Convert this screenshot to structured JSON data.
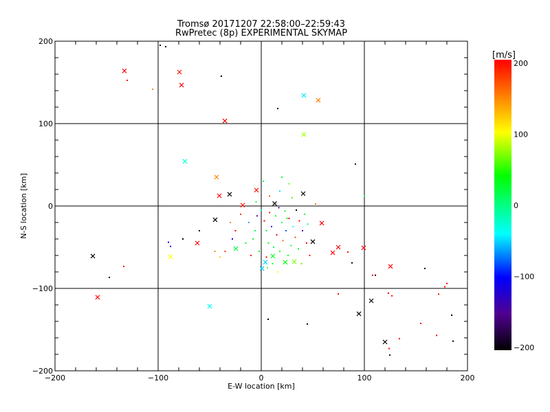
{
  "chart_data": {
    "type": "scatter",
    "title": "Tromsø 20171207 22:58:00–22:59:43",
    "subtitle": "RwPretec (8p) EXPERIMENTAL SKYMAP",
    "xlabel": "E-W location [km]",
    "ylabel": "N-S location [km]",
    "xlim": [
      -200,
      200
    ],
    "ylim": [
      -200,
      200
    ],
    "xticks": [
      -200,
      -100,
      0,
      100,
      200
    ],
    "yticks": [
      -200,
      -100,
      0,
      100,
      200
    ],
    "grid": true,
    "colorbar": {
      "label": "[m/s]",
      "range": [
        -200,
        200
      ],
      "ticks": [
        200,
        100,
        0,
        -100,
        -200
      ]
    },
    "series": [
      {
        "name": "crosses",
        "marker": "x",
        "points": [
          [
            -132.7,
            164,
            200
          ],
          [
            -79.3,
            162.5,
            195
          ],
          [
            -77.3,
            146.7,
            200
          ],
          [
            -35.3,
            103.3,
            200
          ],
          [
            41.3,
            134.2,
            -45
          ],
          [
            55.3,
            128.3,
            150
          ],
          [
            41.3,
            86.7,
            80
          ],
          [
            -74,
            54.2,
            -30
          ],
          [
            -43.3,
            35,
            150
          ],
          [
            -30.7,
            14.2,
            -200
          ],
          [
            -40.7,
            12.5,
            200
          ],
          [
            -4.7,
            19.2,
            190
          ],
          [
            40.7,
            15,
            -200
          ],
          [
            -44.7,
            -16.7,
            -200
          ],
          [
            -62,
            -45,
            200
          ],
          [
            -88,
            -61.7,
            100
          ],
          [
            -163.3,
            -60.8,
            -200
          ],
          [
            -158.7,
            -110.8,
            200
          ],
          [
            -50,
            -121.7,
            -40
          ],
          [
            50,
            -43.3,
            -200
          ],
          [
            58.7,
            -20.8,
            200
          ],
          [
            69.3,
            -56.7,
            200
          ],
          [
            74.7,
            -50,
            200
          ],
          [
            99.3,
            -50.8,
            200
          ],
          [
            125.3,
            -73.3,
            200
          ],
          [
            106.7,
            -115,
            -200
          ],
          [
            94.7,
            -130.8,
            -200
          ],
          [
            120,
            -165,
            -200
          ],
          [
            4,
            -68.3,
            -50
          ],
          [
            0.7,
            -75.8,
            -55
          ],
          [
            -24.7,
            -51.7,
            20
          ],
          [
            32,
            -67.5,
            70
          ],
          [
            11.3,
            -60.8,
            30
          ],
          [
            23.3,
            -68.3,
            40
          ],
          [
            -18,
            1,
            190
          ],
          [
            13,
            3,
            -200
          ]
        ]
      },
      {
        "name": "dots",
        "marker": "dot",
        "points": [
          [
            -98,
            195,
            -200
          ],
          [
            -92.7,
            193.3,
            -200
          ],
          [
            -38.7,
            157.5,
            -200
          ],
          [
            16,
            118.3,
            -200
          ],
          [
            -130,
            152.5,
            200
          ],
          [
            -105.3,
            141.7,
            150
          ],
          [
            91.3,
            50.8,
            -180
          ],
          [
            -147.3,
            -86.7,
            -200
          ],
          [
            -133.3,
            -73.3,
            200
          ],
          [
            44.7,
            -143.3,
            -200
          ],
          [
            6.7,
            -137.5,
            -200
          ],
          [
            158.7,
            -75.8,
            -200
          ],
          [
            180,
            -94,
            200
          ],
          [
            178,
            -98,
            200
          ],
          [
            172,
            -107,
            200
          ],
          [
            170,
            -157,
            200
          ],
          [
            154.7,
            -142.5,
            200
          ],
          [
            184.7,
            -132.5,
            -200
          ],
          [
            186,
            -164,
            -200
          ],
          [
            134,
            -161,
            200
          ],
          [
            124,
            -173,
            200
          ],
          [
            124.7,
            -181,
            -200
          ],
          [
            74.7,
            -106.7,
            200
          ],
          [
            108,
            -84,
            200
          ],
          [
            110.7,
            -84,
            -200
          ],
          [
            123.3,
            -105.8,
            200
          ],
          [
            126.7,
            -109,
            200
          ],
          [
            88,
            -69,
            -200
          ],
          [
            100,
            12,
            10
          ],
          [
            84,
            -56,
            200
          ],
          [
            52.7,
            2.5,
            150
          ],
          [
            -90,
            -44,
            -100
          ],
          [
            -88,
            -49,
            -120
          ],
          [
            -76,
            -40,
            -200
          ],
          [
            -60,
            -30,
            -200
          ],
          [
            -45,
            -55,
            150
          ],
          [
            -40,
            -62,
            120
          ],
          [
            -25,
            -30,
            200
          ],
          [
            -20,
            -10,
            180
          ],
          [
            -12,
            -20,
            -60
          ],
          [
            -8,
            -40,
            30
          ],
          [
            -5,
            5,
            20
          ],
          [
            0,
            -5,
            -20
          ],
          [
            3,
            -18,
            200
          ],
          [
            5,
            -30,
            10
          ],
          [
            7,
            -45,
            40
          ],
          [
            8,
            -8,
            190
          ],
          [
            10,
            -25,
            -90
          ],
          [
            12,
            -50,
            20
          ],
          [
            14,
            -12,
            30
          ],
          [
            15,
            -35,
            200
          ],
          [
            17,
            -2,
            -150
          ],
          [
            18,
            -55,
            50
          ],
          [
            20,
            -20,
            10
          ],
          [
            21,
            -42,
            160
          ],
          [
            23,
            -6,
            30
          ],
          [
            24,
            -30,
            -80
          ],
          [
            26,
            -60,
            40
          ],
          [
            27,
            -15,
            200
          ],
          [
            29,
            -48,
            20
          ],
          [
            30,
            10,
            60
          ],
          [
            31,
            -25,
            -40
          ],
          [
            33,
            -38,
            170
          ],
          [
            34,
            -5,
            -200
          ],
          [
            36,
            -52,
            30
          ],
          [
            37,
            -18,
            200
          ],
          [
            39,
            -70,
            60
          ],
          [
            40,
            -30,
            -150
          ],
          [
            42,
            -10,
            20
          ],
          [
            44,
            -45,
            200
          ],
          [
            45,
            -22,
            10
          ],
          [
            47,
            -60,
            190
          ],
          [
            -2,
            -55,
            40
          ],
          [
            -10,
            -60,
            200
          ],
          [
            -15,
            -45,
            30
          ],
          [
            -28,
            -40,
            -100
          ],
          [
            -30,
            -20,
            150
          ],
          [
            -35,
            -55,
            180
          ],
          [
            2,
            30,
            10
          ],
          [
            20,
            35,
            30
          ],
          [
            18,
            18,
            -50
          ],
          [
            27,
            27,
            60
          ],
          [
            8,
            12,
            170
          ],
          [
            -4,
            -12,
            -150
          ],
          [
            11,
            -70,
            20
          ],
          [
            6,
            -75,
            60
          ],
          [
            16,
            -80,
            100
          ],
          [
            25,
            -15,
            40
          ],
          [
            5,
            -62,
            200
          ],
          [
            -6,
            -30,
            20
          ]
        ]
      }
    ]
  }
}
